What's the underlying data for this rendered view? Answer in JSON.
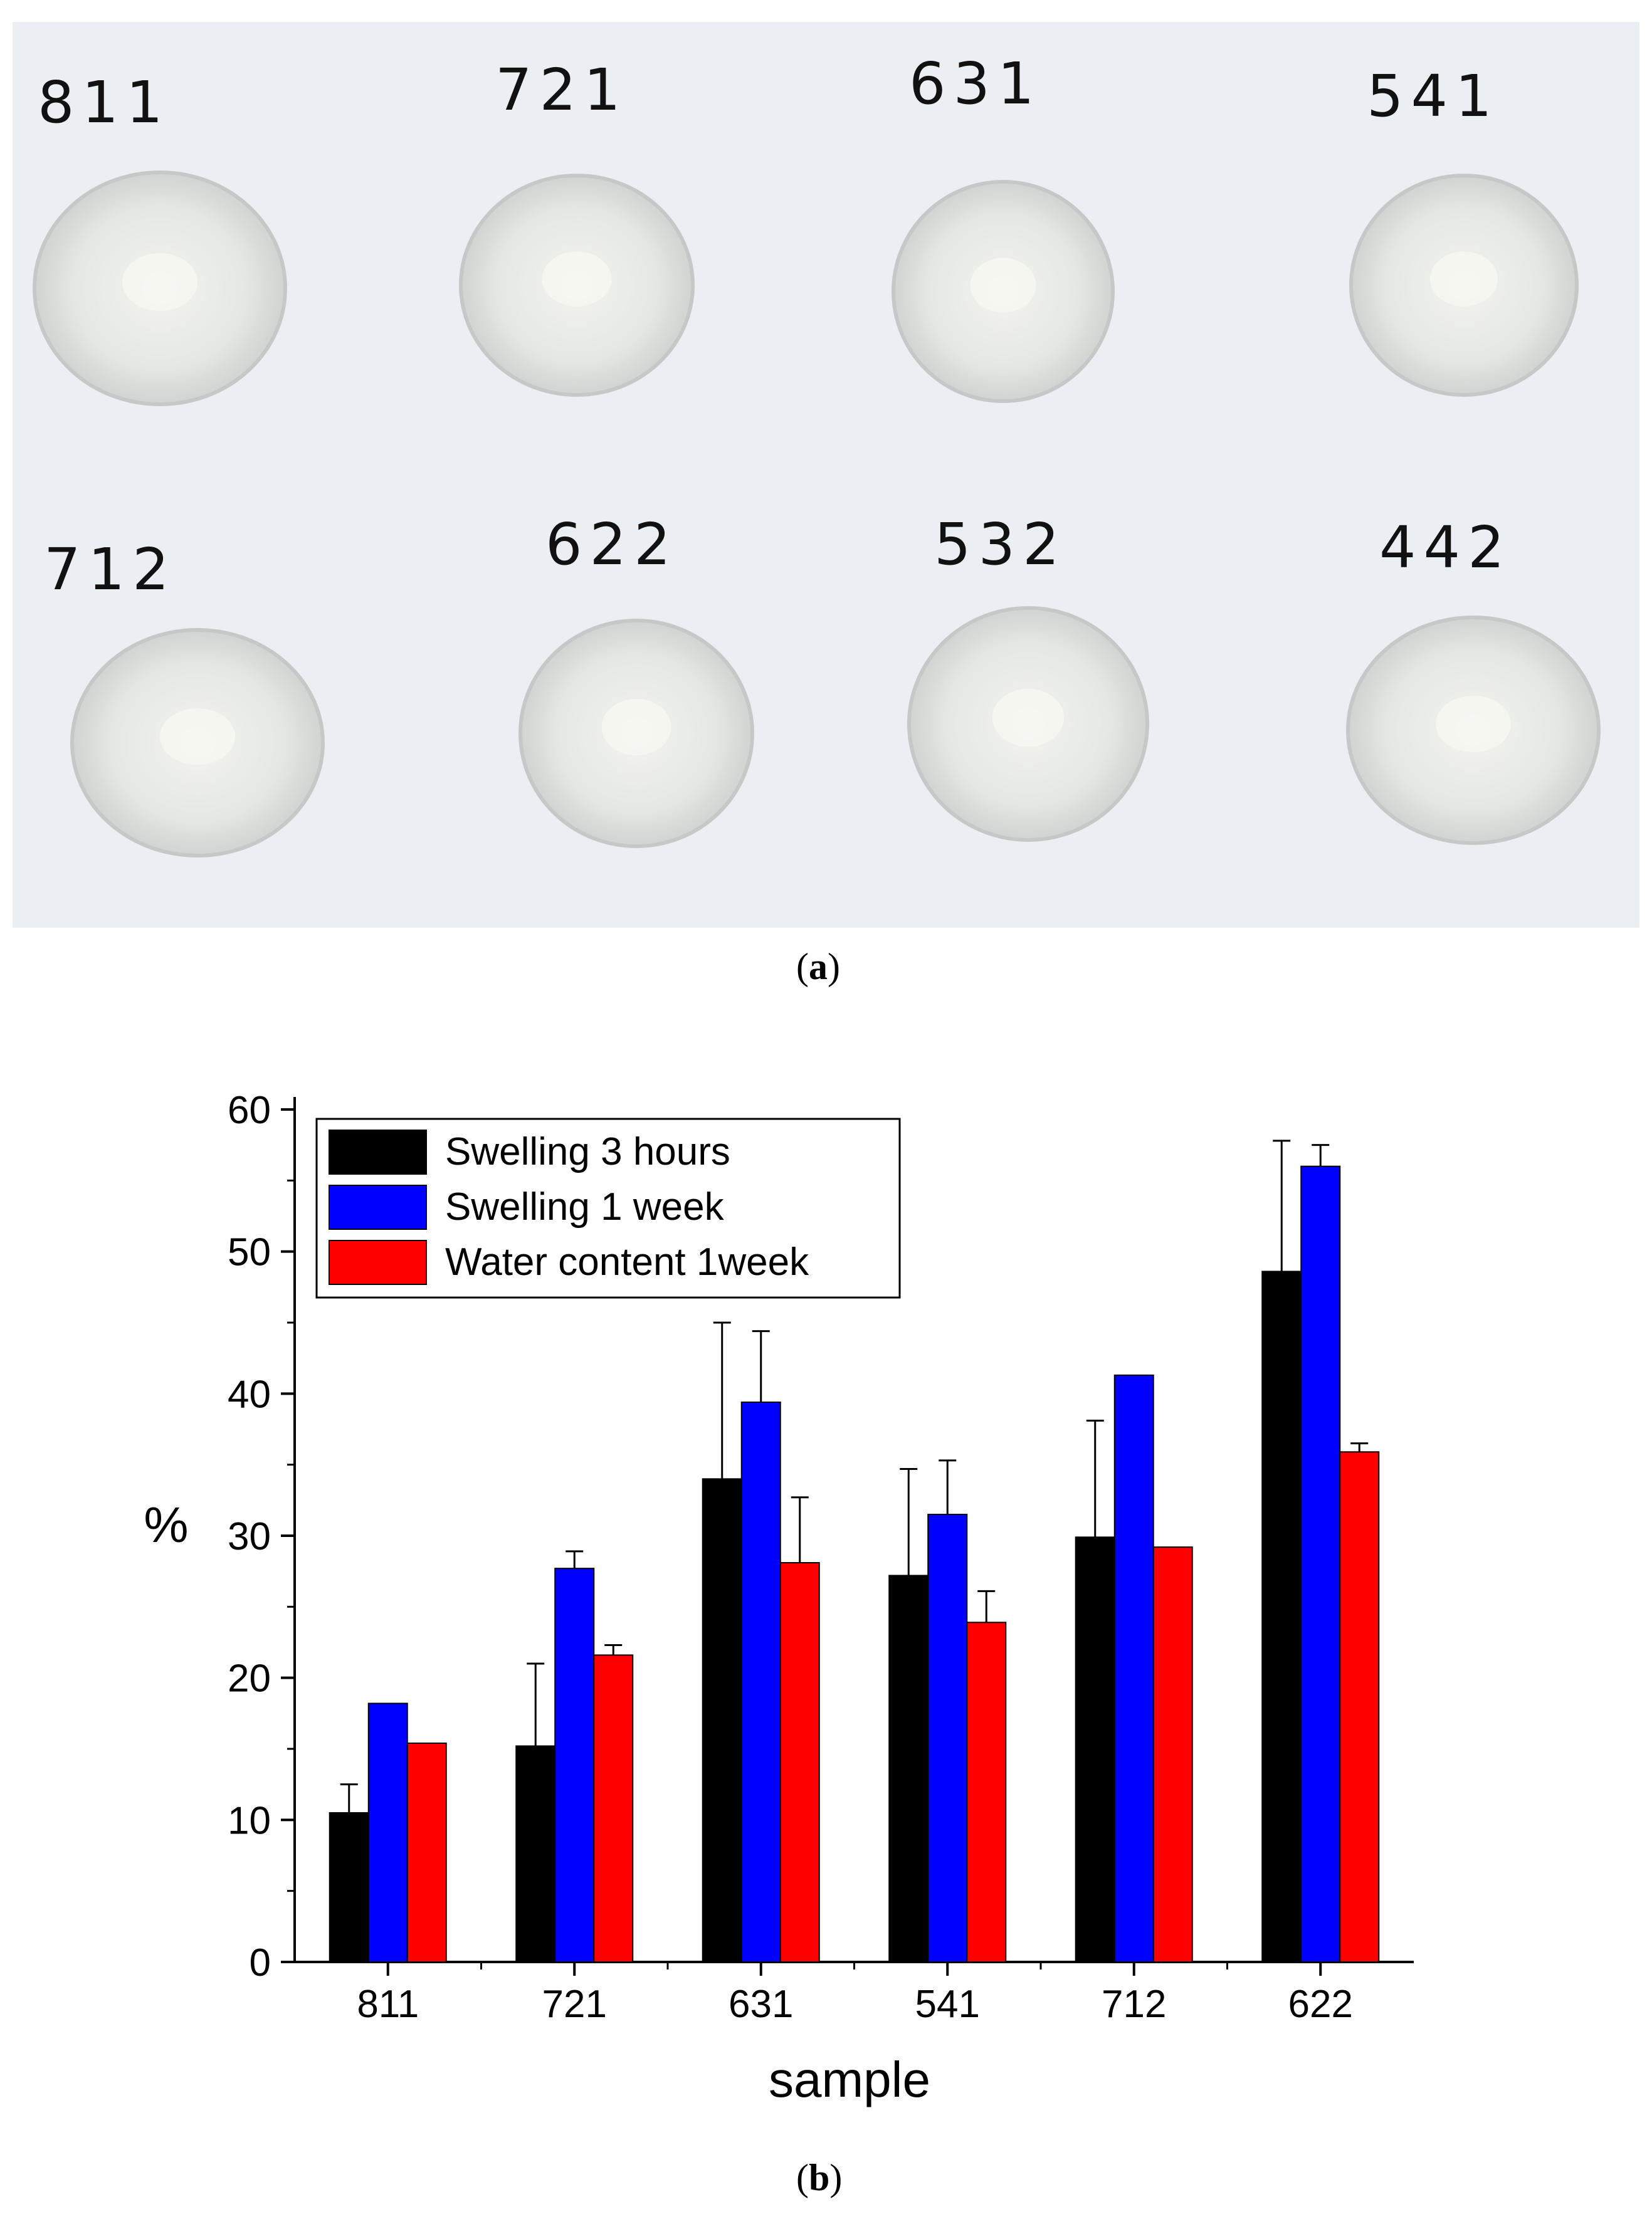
{
  "panel_a": {
    "caption_letter": "a",
    "row1_labels": [
      "811",
      "721",
      "631",
      "541"
    ],
    "row2_labels": [
      "712",
      "622",
      "532",
      "442"
    ]
  },
  "panel_b": {
    "caption_letter": "b"
  },
  "colors": {
    "swelling_3h": "#000000",
    "swelling_1w": "#0000ff",
    "water_1w": "#ff0000",
    "photo_bg": "#ebeff3"
  },
  "chart_data": {
    "type": "bar",
    "categories": [
      "811",
      "721",
      "631",
      "541",
      "712",
      "622"
    ],
    "series": [
      {
        "name": "Swelling 3 hours",
        "values": [
          10.5,
          15.2,
          34.0,
          27.2,
          29.9,
          48.6
        ],
        "errors": [
          2.0,
          5.8,
          11.0,
          7.5,
          8.2,
          9.2
        ]
      },
      {
        "name": "Swelling 1 week",
        "values": [
          18.2,
          27.7,
          39.4,
          31.5,
          41.3,
          56.0
        ],
        "errors": [
          0,
          1.2,
          5.0,
          3.8,
          0,
          1.5
        ]
      },
      {
        "name": "Water content 1week",
        "values": [
          15.4,
          21.6,
          28.1,
          23.9,
          29.2,
          35.9
        ],
        "errors": [
          0,
          0.7,
          4.6,
          2.2,
          0,
          0.6
        ]
      }
    ],
    "xlabel": "sample",
    "ylabel": "%",
    "ylim": [
      0,
      60
    ],
    "yticks": [
      "0",
      "10",
      "20",
      "30",
      "40",
      "50",
      "60"
    ],
    "legend_position": "top-left",
    "grid": false
  }
}
